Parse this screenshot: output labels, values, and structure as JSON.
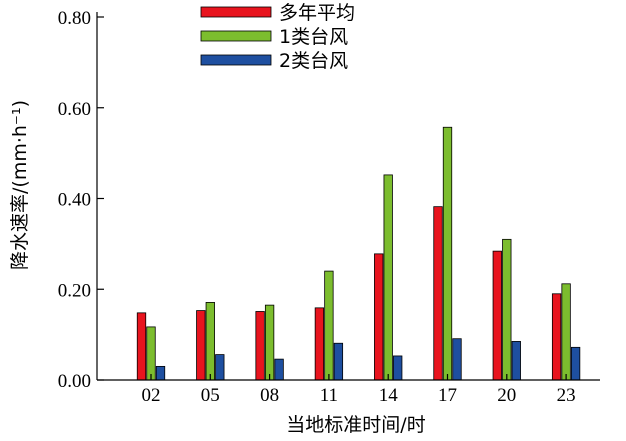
{
  "chart_data": {
    "type": "bar",
    "title": "",
    "xlabel": "当地标准时间/时",
    "ylabel": "降水速率/(mm·h⁻¹)",
    "ylim": [
      0,
      0.8
    ],
    "yticks": [
      "0.00",
      "0.20",
      "0.40",
      "0.60",
      "0.80"
    ],
    "categories": [
      "02",
      "05",
      "08",
      "11",
      "14",
      "17",
      "20",
      "23"
    ],
    "series": [
      {
        "name": "多年平均",
        "color": "#e8141e",
        "values": [
          0.148,
          0.153,
          0.151,
          0.159,
          0.278,
          0.382,
          0.284,
          0.19
        ]
      },
      {
        "name": "1类台风",
        "color": "#7cbd2e",
        "values": [
          0.117,
          0.171,
          0.165,
          0.24,
          0.452,
          0.557,
          0.31,
          0.212
        ]
      },
      {
        "name": "2类台风",
        "color": "#1e4fa0",
        "values": [
          0.03,
          0.056,
          0.046,
          0.081,
          0.053,
          0.091,
          0.085,
          0.072
        ]
      }
    ],
    "legend_position": "top-center",
    "grid": false
  }
}
